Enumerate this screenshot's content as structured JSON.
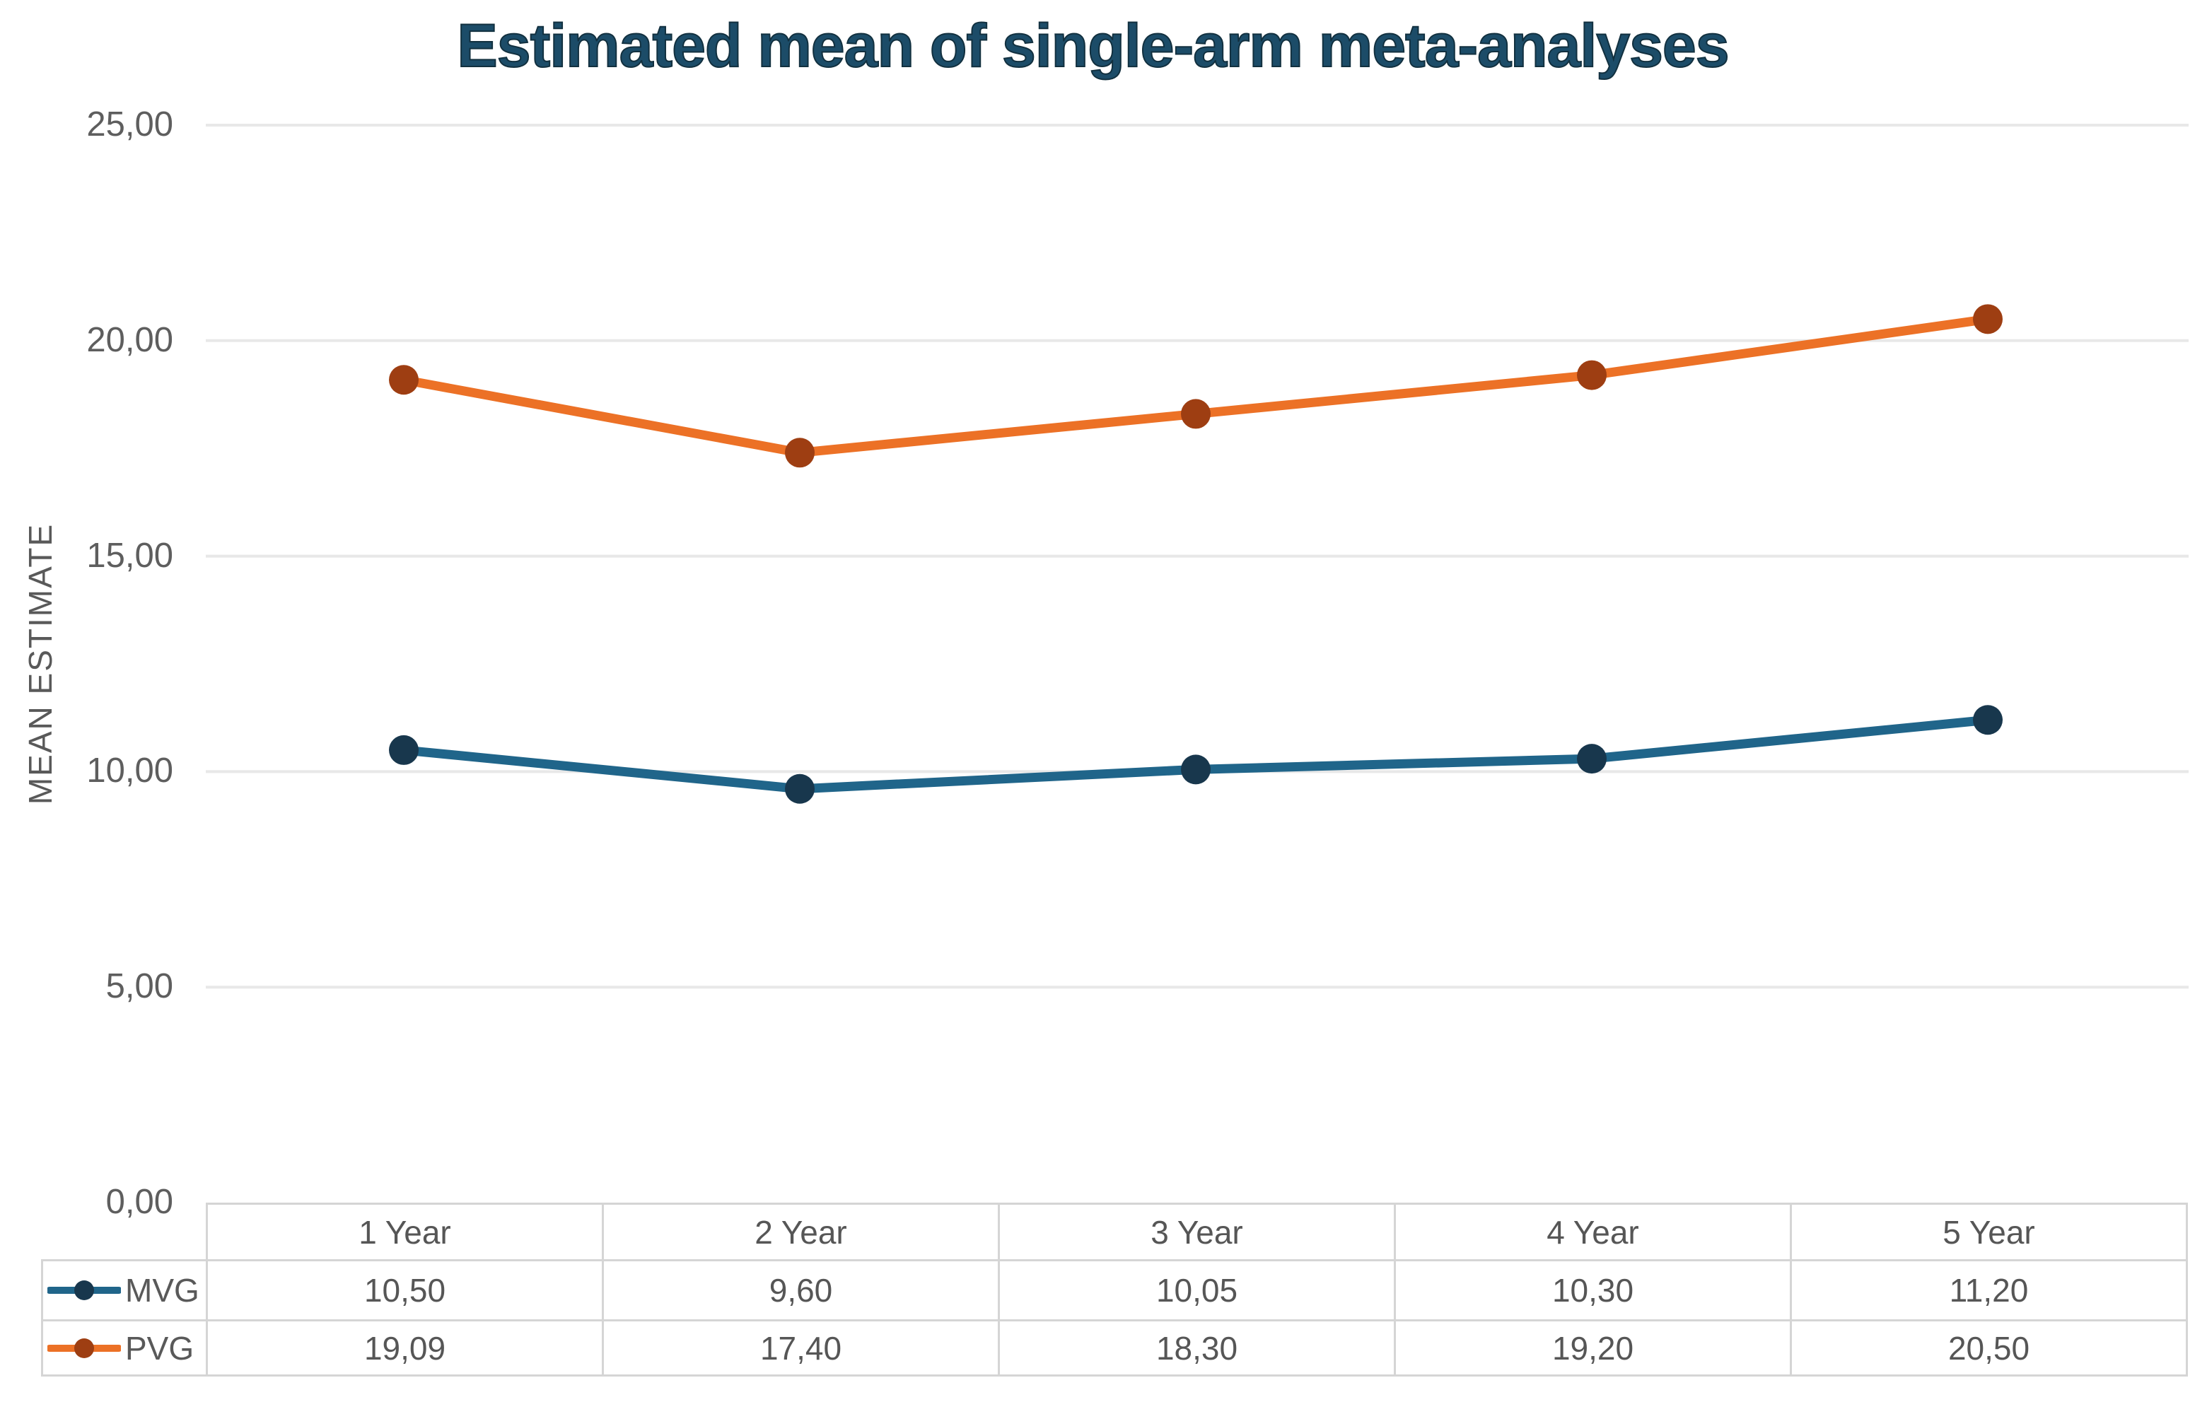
{
  "chart": {
    "title": "Estimated mean of single-arm meta-analyses",
    "y_axis_title": "MEAN ESTIMATE"
  },
  "chart_data": {
    "type": "line",
    "title": "Estimated mean of single-arm meta-analyses",
    "xlabel": "",
    "ylabel": "MEAN ESTIMATE",
    "categories": [
      "1 Year",
      "2 Year",
      "3 Year",
      "4 Year",
      "5 Year"
    ],
    "series": [
      {
        "name": "MVG",
        "values": [
          10.5,
          9.6,
          10.05,
          10.3,
          11.2
        ],
        "values_display": [
          "10,50",
          "9,60",
          "10,05",
          "10,30",
          "11,20"
        ],
        "line_color": "#20658A",
        "marker_color": "#18374D"
      },
      {
        "name": "PVG",
        "values": [
          19.09,
          17.4,
          18.3,
          19.2,
          20.5
        ],
        "values_display": [
          "19,09",
          "17,40",
          "18,30",
          "19,20",
          "20,50"
        ],
        "line_color": "#EC7126",
        "marker_color": "#9E3E12"
      }
    ],
    "ylim": [
      0,
      25
    ],
    "ytick_interval": 5,
    "ytick_labels": [
      "0,00",
      "5,00",
      "10,00",
      "15,00",
      "20,00",
      "25,00"
    ],
    "decimal_separator": ",",
    "grid": true,
    "legend_position": "data-table-row-keys"
  },
  "colors": {
    "title_text": "#1C4C68",
    "axis_text": "#595959",
    "table_text": "#565656",
    "table_border": "#D5D5D5",
    "gridline": "#E8E8E8",
    "background": "#FFFFFF"
  }
}
